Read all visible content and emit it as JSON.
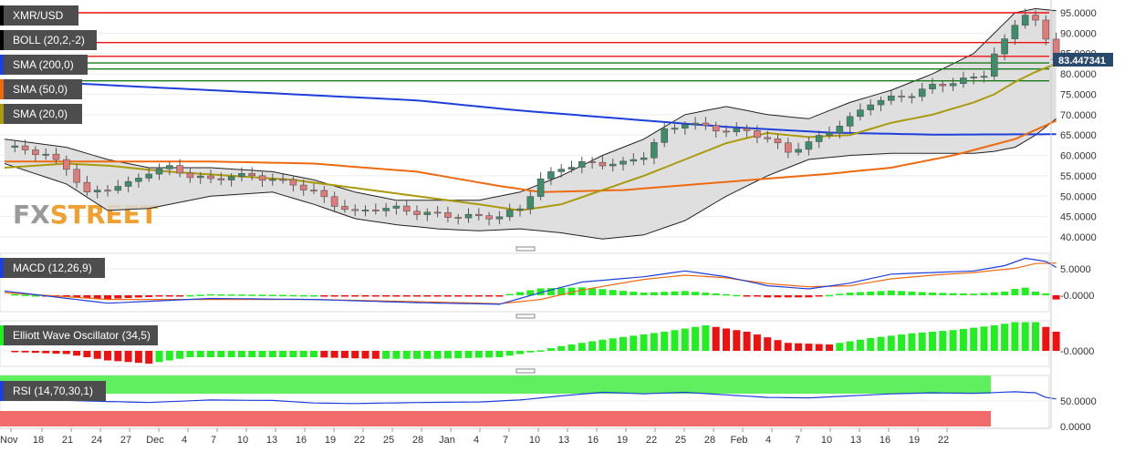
{
  "panels": {
    "main": {
      "pair": "XMR/USD",
      "indicators": [
        {
          "label": "BOLL (20,2,-2)",
          "color": "#000000"
        },
        {
          "label": "SMA (200,0)",
          "color": "#1f3fdb"
        },
        {
          "label": "SMA (50,0)",
          "color": "#ee6a10"
        },
        {
          "label": "SMA (20,0)",
          "color": "#a99a0e"
        }
      ],
      "price_ticks": [
        "95.0000",
        "90.0000",
        "85.0000",
        "80.0000",
        "75.0000",
        "70.0000",
        "65.0000",
        "60.0000",
        "55.0000",
        "50.0000",
        "45.0000",
        "40.0000"
      ],
      "current_price": "83.447341",
      "horizontal_levels": [
        {
          "value": 95.0,
          "color": "#ee1111"
        },
        {
          "value": 87.7,
          "color": "#ee1111"
        },
        {
          "value": 84.3,
          "color": "#ee1111"
        },
        {
          "value": 82.7,
          "color": "#1b7a1b"
        },
        {
          "value": 81.2,
          "color": "#1b7a1b"
        },
        {
          "value": 78.3,
          "color": "#1b7a1b"
        }
      ]
    },
    "macd": {
      "label": "MACD (12,26,9)",
      "ticks": [
        "5.0000",
        "-0.0000"
      ]
    },
    "ewo": {
      "label": "Elliott Wave Oscillator (34,5)",
      "ticks": [
        "-0.0000"
      ]
    },
    "rsi": {
      "label": "RSI (14,70,30,1)",
      "ticks": [
        "50.0000",
        "0.0000"
      ]
    }
  },
  "watermark": {
    "part1": "FX",
    "part2": "STREET"
  },
  "date_labels": [
    "Nov",
    "18",
    "21",
    "24",
    "27",
    "Dec",
    "4",
    "7",
    "10",
    "13",
    "16",
    "19",
    "22",
    "25",
    "28",
    "Jan",
    "4",
    "7",
    "10",
    "13",
    "16",
    "19",
    "22",
    "25",
    "28",
    "Feb",
    "4",
    "7",
    "10",
    "13",
    "16",
    "19",
    "22"
  ],
  "colors": {
    "bull_candle": "#3d8c6a",
    "bear_candle": "#e07b7b",
    "hist_up": "#22ee22",
    "hist_down": "#ee1111",
    "boll_fill": "#d9d9d9",
    "rsi_upper_zone": "#5fef5f",
    "rsi_lower_zone": "#f26b6b"
  }
}
